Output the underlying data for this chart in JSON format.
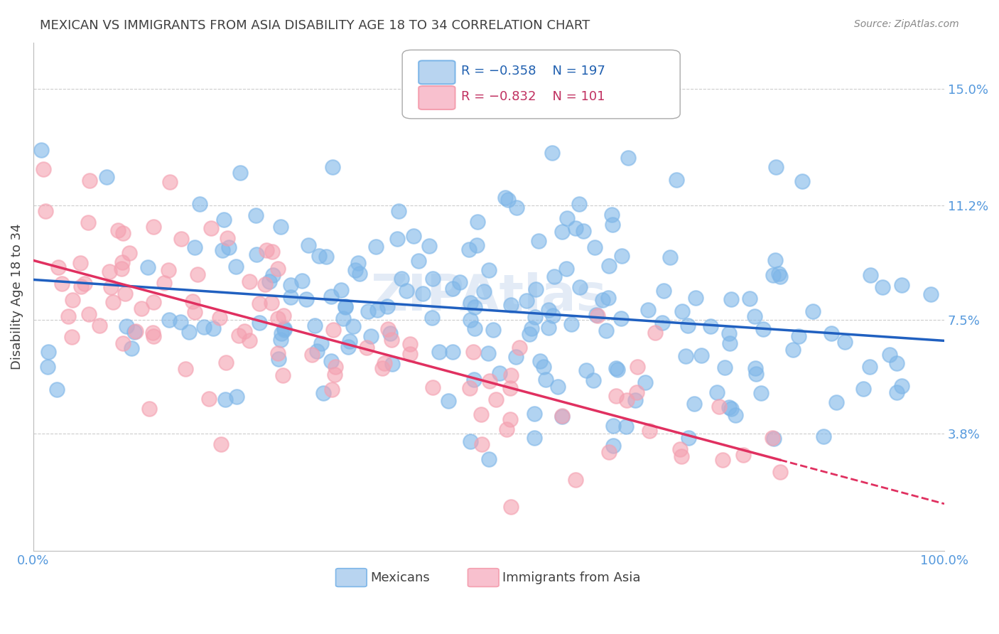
{
  "title": "MEXICAN VS IMMIGRANTS FROM ASIA DISABILITY AGE 18 TO 34 CORRELATION CHART",
  "source": "Source: ZipAtlas.com",
  "ylabel": "Disability Age 18 to 34",
  "ytick_labels": [
    "3.8%",
    "7.5%",
    "11.2%",
    "15.0%"
  ],
  "ytick_values": [
    0.038,
    0.075,
    0.112,
    0.15
  ],
  "xlim": [
    0.0,
    1.0
  ],
  "ylim": [
    0.0,
    0.165
  ],
  "blue_color": "#7EB6E8",
  "pink_color": "#F4A0B0",
  "blue_line_color": "#2060C0",
  "pink_line_color": "#E03060",
  "blue_line_r": -0.358,
  "pink_line_r": -0.832,
  "watermark": "ZIPAtlas",
  "background_color": "#FFFFFF",
  "grid_color": "#CCCCCC",
  "title_color": "#404040",
  "axis_label_color": "#5599DD",
  "seed_blue": 42,
  "seed_pink": 99,
  "n_blue": 197,
  "n_pink": 101
}
